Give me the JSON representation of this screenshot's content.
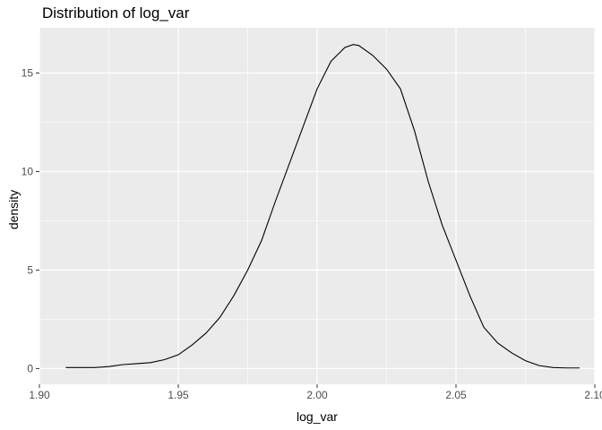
{
  "chart_data": {
    "type": "line",
    "title": "Distribution of log_var",
    "xlabel": "log_var",
    "ylabel": "density",
    "xlim": [
      1.9,
      2.1
    ],
    "ylim": [
      -0.8,
      17.3
    ],
    "x_ticks": [
      1.9,
      1.95,
      2.0,
      2.05,
      2.1
    ],
    "x_tick_labels": [
      "1.90",
      "1.95",
      "2.00",
      "2.05",
      "2.10"
    ],
    "y_ticks": [
      0,
      5,
      10,
      15
    ],
    "y_tick_labels": [
      "0",
      "5",
      "10",
      "15"
    ],
    "grid": true,
    "legend": "none",
    "colors": {
      "panel": "#ebebeb",
      "grid": "#ffffff",
      "line": "#000000",
      "tick_text": "#4d4d4d"
    },
    "series": [
      {
        "x": [
          1.9095,
          1.915,
          1.92,
          1.925,
          1.93,
          1.935,
          1.94,
          1.945,
          1.95,
          1.955,
          1.96,
          1.965,
          1.97,
          1.975,
          1.98,
          1.985,
          1.99,
          1.995,
          2.0,
          2.005,
          2.01,
          2.013,
          2.015,
          2.02,
          2.025,
          2.03,
          2.035,
          2.04,
          2.045,
          2.05,
          2.055,
          2.06,
          2.065,
          2.07,
          2.075,
          2.08,
          2.085,
          2.09,
          2.0945
        ],
        "y": [
          0.05,
          0.05,
          0.05,
          0.1,
          0.2,
          0.25,
          0.3,
          0.45,
          0.7,
          1.2,
          1.8,
          2.6,
          3.7,
          5.0,
          6.5,
          8.5,
          10.4,
          12.3,
          14.2,
          15.6,
          16.3,
          16.45,
          16.4,
          15.9,
          15.2,
          14.2,
          12.1,
          9.5,
          7.3,
          5.5,
          3.7,
          2.1,
          1.3,
          0.8,
          0.4,
          0.15,
          0.05,
          0.03,
          0.03
        ]
      }
    ]
  }
}
